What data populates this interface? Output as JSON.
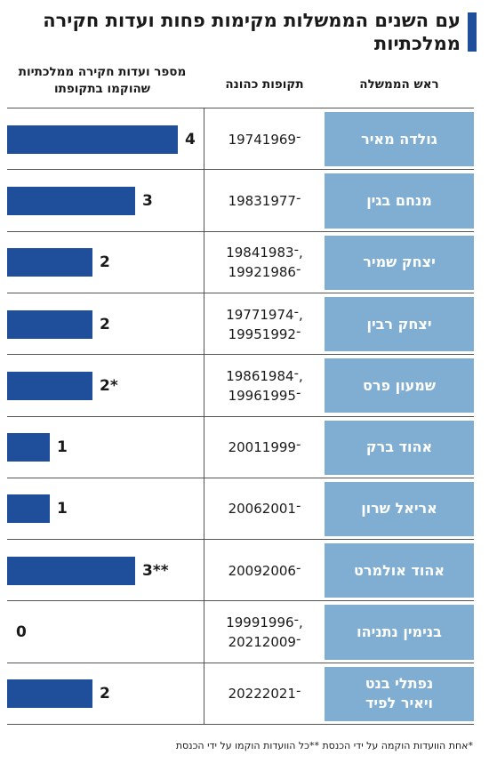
{
  "title": "עם השנים הממשלות מקימות פחות ועדות חקירה ממלכתיות",
  "chart_data": {
    "type": "bar",
    "columns": {
      "pm": "ראש הממשלה",
      "term": "תקופות כהונה",
      "commissions": "מספר ועדות חקירה ממלכתיות שהוקמו בתקופתו"
    },
    "xlim": [
      0,
      4
    ],
    "rows": [
      {
        "pm": "גולדה מאיר",
        "term": "1974־1969",
        "value": 4,
        "label": "4"
      },
      {
        "pm": "מנחם בגין",
        "term": "1983־1977",
        "value": 3,
        "label": "3"
      },
      {
        "pm": "יצחק שמיר",
        "term": "1984־1983,\n1992־1986",
        "value": 2,
        "label": "2"
      },
      {
        "pm": "יצחק רבין",
        "term": "1977־1974,\n1995־1992",
        "value": 2,
        "label": "2"
      },
      {
        "pm": "שמעון פרס",
        "term": "1986־1984,\n1996־1995",
        "value": 2,
        "label": "2*"
      },
      {
        "pm": "אהוד ברק",
        "term": "2001־1999",
        "value": 1,
        "label": "1"
      },
      {
        "pm": "אריאל שרון",
        "term": "2006־2001",
        "value": 1,
        "label": "1"
      },
      {
        "pm": "אהוד אולמרט",
        "term": "2009־2006",
        "value": 3,
        "label": "3**"
      },
      {
        "pm": "בנימין נתניהו",
        "term": "1999־1996,\n2021־2009",
        "value": 0,
        "label": "0"
      },
      {
        "pm": "נפתלי בנט\nויאיר לפיד",
        "term": "2022־2021",
        "value": 2,
        "label": "2"
      }
    ],
    "footnote": "*אחת הוועדות הוקמה על ידי הכנסת **כל הוועדות הוקמו על ידי הכנסת"
  },
  "colors": {
    "bar": "#1f4e9a",
    "pm_cell": "#80aed3",
    "title_bar": "#1f4e9a"
  }
}
